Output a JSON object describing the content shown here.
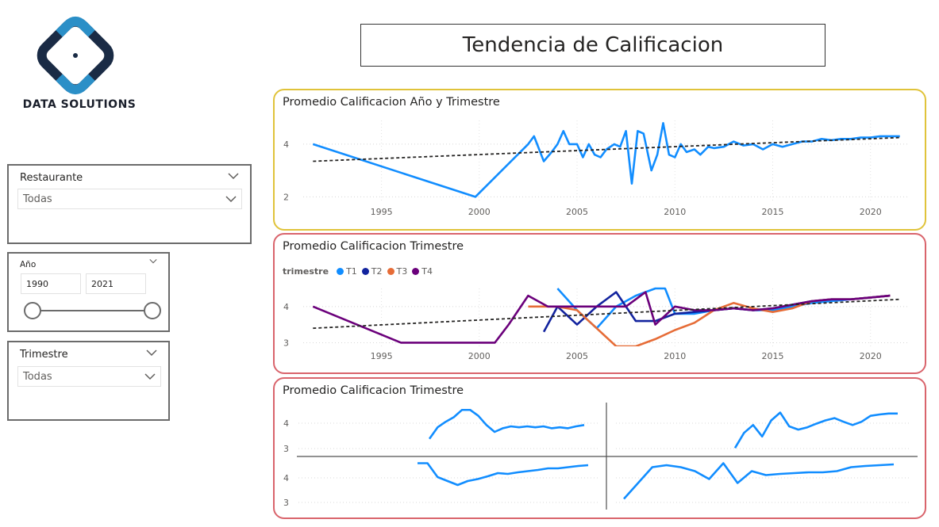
{
  "logo": {
    "text": "DATA SOLUTIONS"
  },
  "page": {
    "title": "Tendencia de Calificacion"
  },
  "slicers": {
    "restaurante": {
      "label": "Restaurante",
      "value": "Todas"
    },
    "anio": {
      "label": "Año",
      "from": "1990",
      "to": "2021"
    },
    "trimestre": {
      "label": "Trimestre",
      "value": "Todas"
    }
  },
  "colors": {
    "t1": "#118DFF",
    "t2": "#12239E",
    "t3": "#E66C37",
    "t4": "#6B007B",
    "panel1_border": "#E0C33A",
    "panel_border": "#D9646C"
  },
  "charts": {
    "chart1": {
      "title": "Promedio Calificacion Año y Trimestre"
    },
    "chart2": {
      "title": "Promedio Calificacion Trimestre",
      "legend_title": "trimestre"
    },
    "chart3": {
      "title": "Promedio Calificacion Trimestre"
    }
  },
  "chart_data": [
    {
      "type": "line",
      "title": "Promedio Calificacion Año y Trimestre",
      "x_ticks": [
        1995,
        2000,
        2005,
        2010,
        2015,
        2020
      ],
      "y_ticks": [
        2,
        4
      ],
      "xlim": [
        1991,
        2022
      ],
      "ylim": [
        1.8,
        4.9
      ],
      "series": [
        {
          "color": "#118DFF",
          "values": [
            [
              1991.5,
              4.0
            ],
            [
              1999.8,
              2.0
            ],
            [
              2002.5,
              4.0
            ],
            [
              2002.8,
              4.3
            ],
            [
              2003.3,
              3.35
            ],
            [
              2003.7,
              3.7
            ],
            [
              2004.0,
              4.0
            ],
            [
              2004.3,
              4.5
            ],
            [
              2004.6,
              4.0
            ],
            [
              2005.0,
              4.0
            ],
            [
              2005.3,
              3.5
            ],
            [
              2005.6,
              4.0
            ],
            [
              2005.9,
              3.6
            ],
            [
              2006.2,
              3.5
            ],
            [
              2006.5,
              3.8
            ],
            [
              2006.9,
              4.0
            ],
            [
              2007.2,
              3.9
            ],
            [
              2007.5,
              4.5
            ],
            [
              2007.8,
              2.5
            ],
            [
              2008.1,
              4.5
            ],
            [
              2008.4,
              4.4
            ],
            [
              2008.8,
              3.0
            ],
            [
              2009.1,
              3.6
            ],
            [
              2009.4,
              4.8
            ],
            [
              2009.7,
              3.6
            ],
            [
              2010.0,
              3.5
            ],
            [
              2010.3,
              4.0
            ],
            [
              2010.6,
              3.7
            ],
            [
              2011.0,
              3.8
            ],
            [
              2011.3,
              3.6
            ],
            [
              2011.7,
              3.9
            ],
            [
              2012.0,
              3.85
            ],
            [
              2012.5,
              3.9
            ],
            [
              2013.0,
              4.1
            ],
            [
              2013.5,
              3.95
            ],
            [
              2014.0,
              4.0
            ],
            [
              2014.5,
              3.8
            ],
            [
              2015.0,
              4.0
            ],
            [
              2015.5,
              3.9
            ],
            [
              2016.0,
              4.0
            ],
            [
              2016.5,
              4.1
            ],
            [
              2017.0,
              4.1
            ],
            [
              2017.5,
              4.2
            ],
            [
              2018.0,
              4.15
            ],
            [
              2018.5,
              4.2
            ],
            [
              2019.0,
              4.2
            ],
            [
              2019.5,
              4.25
            ],
            [
              2020.0,
              4.25
            ],
            [
              2020.5,
              4.3
            ],
            [
              2021.0,
              4.3
            ],
            [
              2021.5,
              4.3
            ]
          ]
        }
      ],
      "trend": [
        [
          1991.5,
          3.35
        ],
        [
          2021.5,
          4.25
        ]
      ]
    },
    {
      "type": "line",
      "title": "Promedio Calificacion Trimestre",
      "legend": [
        "T1",
        "T2",
        "T3",
        "T4"
      ],
      "x_ticks": [
        1995,
        2000,
        2005,
        2010,
        2015,
        2020
      ],
      "y_ticks": [
        3,
        4
      ],
      "xlim": [
        1991,
        2022
      ],
      "ylim": [
        2.9,
        4.5
      ],
      "series": [
        {
          "name": "T1",
          "color": "#118DFF",
          "values": [
            [
              2004.0,
              4.5
            ],
            [
              2005.0,
              3.9
            ],
            [
              2006.0,
              3.4
            ],
            [
              2007.0,
              4.0
            ],
            [
              2008.0,
              4.3
            ],
            [
              2009.0,
              4.5
            ],
            [
              2009.5,
              4.5
            ],
            [
              2010.0,
              3.8
            ],
            [
              2011.0,
              3.8
            ],
            [
              2012.0,
              3.9
            ],
            [
              2013.0,
              3.95
            ],
            [
              2014.0,
              3.9
            ],
            [
              2015.0,
              3.9
            ],
            [
              2016.0,
              4.0
            ],
            [
              2017.0,
              4.1
            ],
            [
              2018.0,
              4.15
            ],
            [
              2019.0,
              4.2
            ],
            [
              2020.0,
              4.25
            ],
            [
              2021.0,
              4.3
            ]
          ]
        },
        {
          "name": "T2",
          "color": "#12239E",
          "values": [
            [
              2003.3,
              3.3
            ],
            [
              2004.0,
              4.0
            ],
            [
              2005.0,
              3.5
            ],
            [
              2006.0,
              4.0
            ],
            [
              2007.0,
              4.4
            ],
            [
              2008.0,
              3.6
            ],
            [
              2009.0,
              3.6
            ],
            [
              2010.0,
              3.8
            ],
            [
              2011.0,
              3.85
            ],
            [
              2012.0,
              3.9
            ],
            [
              2013.0,
              3.95
            ],
            [
              2014.0,
              3.9
            ],
            [
              2015.0,
              3.95
            ],
            [
              2016.0,
              4.05
            ],
            [
              2017.0,
              4.15
            ],
            [
              2018.0,
              4.2
            ],
            [
              2019.0,
              4.2
            ],
            [
              2020.0,
              4.25
            ],
            [
              2021.0,
              4.3
            ]
          ]
        },
        {
          "name": "T3",
          "color": "#E66C37",
          "values": [
            [
              2002.5,
              4.0
            ],
            [
              2004.0,
              4.0
            ],
            [
              2005.0,
              3.9
            ],
            [
              2006.0,
              3.4
            ],
            [
              2007.0,
              2.9
            ],
            [
              2008.0,
              2.9
            ],
            [
              2009.0,
              3.1
            ],
            [
              2010.0,
              3.35
            ],
            [
              2011.0,
              3.55
            ],
            [
              2012.0,
              3.9
            ],
            [
              2013.0,
              4.1
            ],
            [
              2014.0,
              3.95
            ],
            [
              2015.0,
              3.85
            ],
            [
              2016.0,
              3.95
            ],
            [
              2017.0,
              4.15
            ],
            [
              2018.0,
              4.2
            ],
            [
              2019.0,
              4.2
            ],
            [
              2020.0,
              4.25
            ],
            [
              2021.0,
              4.3
            ]
          ]
        },
        {
          "name": "T4",
          "color": "#6B007B",
          "values": [
            [
              1991.5,
              4.0
            ],
            [
              1996.0,
              3.0
            ],
            [
              2000.8,
              3.0
            ],
            [
              2001.5,
              3.5
            ],
            [
              2002.5,
              4.3
            ],
            [
              2003.5,
              4.0
            ],
            [
              2004.5,
              4.0
            ],
            [
              2005.5,
              4.0
            ],
            [
              2006.5,
              4.0
            ],
            [
              2007.5,
              4.0
            ],
            [
              2008.5,
              4.4
            ],
            [
              2009.0,
              3.5
            ],
            [
              2010.0,
              4.0
            ],
            [
              2011.0,
              3.9
            ],
            [
              2012.0,
              3.9
            ],
            [
              2013.0,
              3.95
            ],
            [
              2014.0,
              3.9
            ],
            [
              2015.0,
              3.95
            ],
            [
              2016.0,
              4.05
            ],
            [
              2017.0,
              4.15
            ],
            [
              2018.0,
              4.2
            ],
            [
              2019.0,
              4.2
            ],
            [
              2020.0,
              4.25
            ],
            [
              2021.0,
              4.3
            ]
          ]
        }
      ],
      "trend": [
        [
          1991.5,
          3.4
        ],
        [
          2021.5,
          4.2
        ]
      ]
    },
    {
      "type": "line",
      "title": "Promedio Calificacion Trimestre",
      "small_multiples": true,
      "y_ticks": [
        3,
        4
      ],
      "panels": [
        {
          "values": [
            0.35,
            0.6,
            0.72,
            0.82,
            0.98,
            0.98,
            0.85,
            0.65,
            0.5,
            0.58,
            0.62,
            0.6,
            0.62,
            0.6,
            0.62,
            0.58,
            0.6,
            0.58,
            0.62,
            0.65
          ]
        },
        {
          "values": [
            0.15,
            0.48,
            0.65,
            0.4,
            0.75,
            0.92,
            0.62,
            0.55,
            0.6,
            0.68,
            0.75,
            0.8,
            0.72,
            0.65,
            0.72,
            0.85,
            0.88,
            0.9,
            0.9
          ]
        },
        {
          "values": [
            0.95,
            0.95,
            0.6,
            0.5,
            0.4,
            0.5,
            0.55,
            0.62,
            0.7,
            0.68,
            0.72,
            0.75,
            0.78,
            0.82,
            0.82,
            0.85,
            0.88,
            0.9
          ]
        },
        {
          "values": [
            0.05,
            0.45,
            0.85,
            0.9,
            0.85,
            0.75,
            0.55,
            0.95,
            0.45,
            0.75,
            0.65,
            0.68,
            0.7,
            0.72,
            0.72,
            0.75,
            0.85,
            0.88,
            0.9,
            0.92
          ]
        }
      ]
    }
  ]
}
